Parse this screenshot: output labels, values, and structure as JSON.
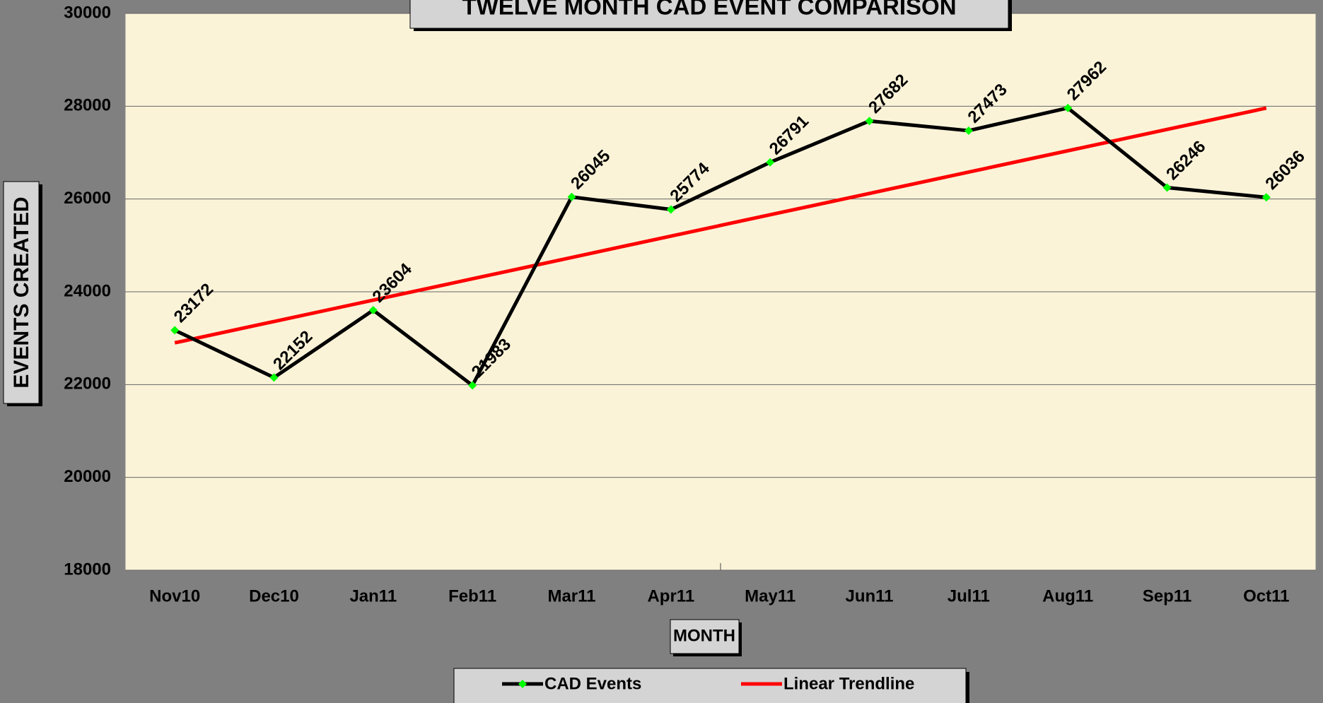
{
  "chart_data": {
    "type": "line",
    "title": "TWELVE MONTH CAD EVENT COMPARISON",
    "x_label": "MONTH",
    "y_label": "EVENTS CREATED",
    "categories": [
      "Nov10",
      "Dec10",
      "Jan11",
      "Feb11",
      "Mar11",
      "Apr11",
      "May11",
      "Jun11",
      "Jul11",
      "Aug11",
      "Sep11",
      "Oct11"
    ],
    "series": [
      {
        "name": "CAD Events",
        "color": "#000000",
        "marker_color": "#00ff00",
        "data_labels": true,
        "values": [
          23172,
          22152,
          23604,
          21983,
          26045,
          25774,
          26791,
          27682,
          27473,
          27962,
          26246,
          26036
        ]
      },
      {
        "name": "Linear Trendline",
        "color": "#ff0000",
        "data_labels": false,
        "values": [
          22900,
          23360,
          23820,
          24280,
          24740,
          25200,
          25660,
          26120,
          26580,
          27040,
          27500,
          27960
        ]
      }
    ],
    "ylim": [
      18000,
      30000
    ],
    "yticks": [
      18000,
      20000,
      22000,
      24000,
      26000,
      28000,
      30000
    ],
    "grid": true,
    "legend": "bottom"
  }
}
